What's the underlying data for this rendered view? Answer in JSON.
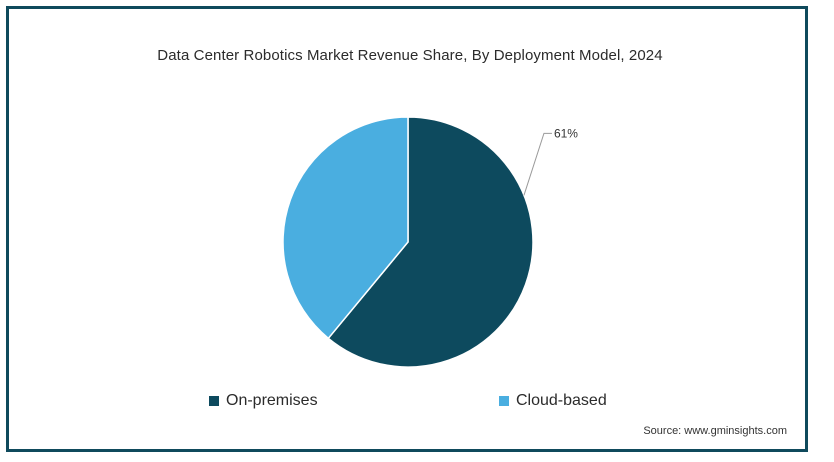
{
  "chart_data": {
    "type": "pie",
    "title": "Data Center Robotics Market Revenue Share, By Deployment Model, 2024",
    "categories": [
      "On-premises",
      "Cloud-based"
    ],
    "values": [
      61,
      39
    ],
    "colors": [
      "#0d4a5e",
      "#4aaee0"
    ],
    "data_labels": [
      "61%",
      ""
    ],
    "legend_position": "bottom"
  },
  "source": "Source: www.gminsights.com",
  "colors": {
    "frame": "#0f4a5c"
  }
}
